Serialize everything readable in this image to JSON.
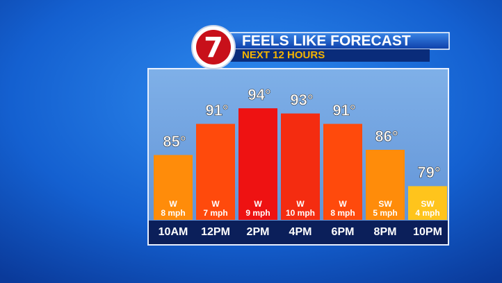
{
  "logo": "7",
  "chart_data": {
    "type": "bar",
    "title": "FEELS LIKE FORECAST",
    "subtitle": "NEXT 12 HOURS",
    "categories": [
      "10AM",
      "12PM",
      "2PM",
      "4PM",
      "6PM",
      "8PM",
      "10PM"
    ],
    "values": [
      85,
      91,
      94,
      93,
      91,
      86,
      79
    ],
    "value_labels": [
      "85°",
      "91°",
      "94°",
      "93°",
      "91°",
      "86°",
      "79°"
    ],
    "colors": [
      "#ff8c0a",
      "#ff4a0c",
      "#ee1212",
      "#f42c10",
      "#ff4a0c",
      "#ff8c0a",
      "#ffc41c"
    ],
    "wind": [
      {
        "direction": "W",
        "speed": "8 mph"
      },
      {
        "direction": "W",
        "speed": "7 mph"
      },
      {
        "direction": "W",
        "speed": "9 mph"
      },
      {
        "direction": "W",
        "speed": "10 mph"
      },
      {
        "direction": "W",
        "speed": "8 mph"
      },
      {
        "direction": "SW",
        "speed": "5 mph"
      },
      {
        "direction": "SW",
        "speed": "4 mph"
      }
    ],
    "ylim": [
      72.5,
      101.5
    ]
  }
}
